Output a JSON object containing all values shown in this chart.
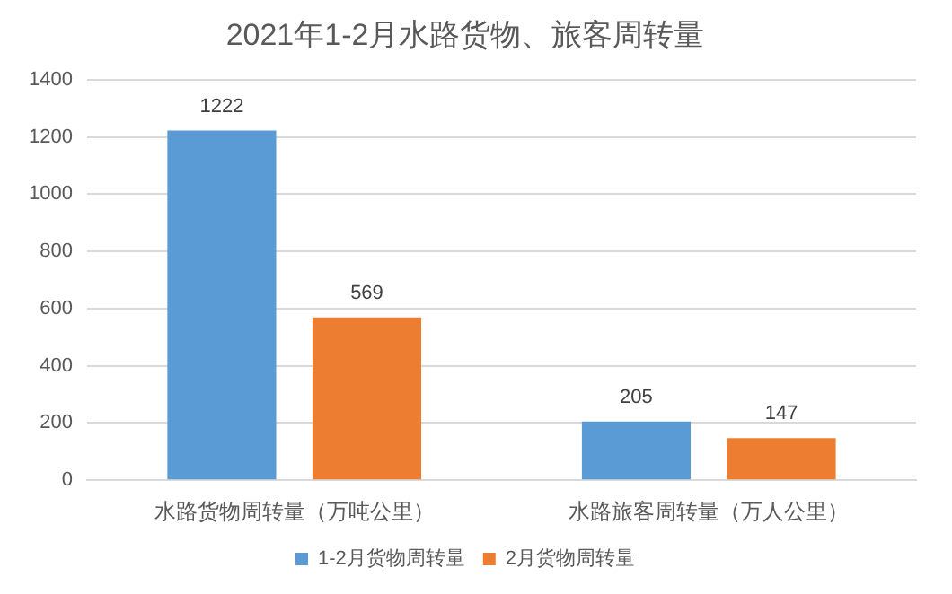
{
  "chart_data": {
    "type": "bar",
    "title": "2021年1-2月水路货物、旅客周转量",
    "categories": [
      "水路货物周转量（万吨公里）",
      "水路旅客周转量（万人公里）"
    ],
    "series": [
      {
        "name": "1-2月货物周转量",
        "color": "#5b9bd5",
        "values": [
          1222,
          205
        ]
      },
      {
        "name": "2月货物周转量",
        "color": "#ed7d31",
        "values": [
          569,
          147
        ]
      }
    ],
    "ylim": [
      0,
      1400
    ],
    "yticks": [
      0,
      200,
      400,
      600,
      800,
      1000,
      1200,
      1400
    ],
    "grid": "y",
    "legend": "bottom",
    "data_labels": true
  }
}
